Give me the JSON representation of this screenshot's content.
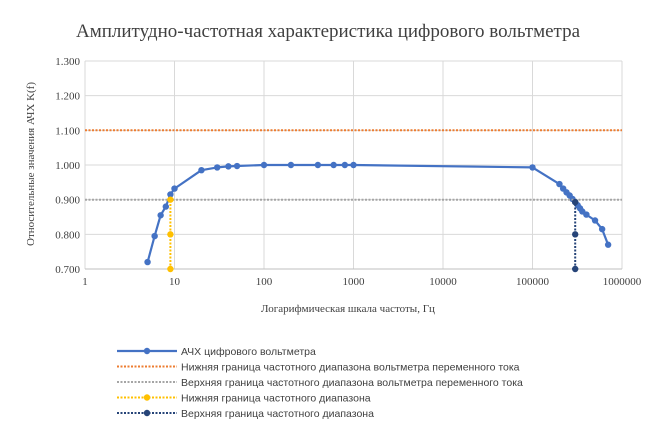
{
  "chart_data": {
    "type": "scatter",
    "title": "Амплитудно-частотная характеристика цифрового вольтметра",
    "xlabel": "Логарифмическая шкала частоты, Гц",
    "ylabel": "Относительные значения АЧХ K(f)",
    "x_scale": "log",
    "xlim": [
      1,
      1000000
    ],
    "ylim": [
      0.7,
      1.3
    ],
    "x_ticks": [
      "1",
      "10",
      "100",
      "1000",
      "10000",
      "100000",
      "1000000"
    ],
    "y_ticks": [
      "0.700",
      "0.800",
      "0.900",
      "1.000",
      "1.100",
      "1.200",
      "1.300"
    ],
    "grid": true,
    "legend_position": "bottom",
    "series": [
      {
        "name": "АЧХ цифрового вольтметра",
        "color": "#4472c4",
        "style": "line-markers",
        "x": [
          5,
          6,
          7,
          8,
          9,
          10,
          20,
          30,
          40,
          50,
          100,
          200,
          400,
          600,
          800,
          1000,
          100000,
          200000,
          220000,
          240000,
          260000,
          280000,
          300000,
          320000,
          340000,
          360000,
          400000,
          500000,
          600000,
          700000
        ],
        "y": [
          0.72,
          0.795,
          0.855,
          0.88,
          0.915,
          0.932,
          0.985,
          0.993,
          0.996,
          0.997,
          1.0,
          1.0,
          1.0,
          1.0,
          1.0,
          1.0,
          0.993,
          0.945,
          0.932,
          0.921,
          0.912,
          0.902,
          0.893,
          0.884,
          0.875,
          0.866,
          0.857,
          0.84,
          0.815,
          0.77
        ]
      },
      {
        "name": "Нижняя граница частотного диапазона вольтметра переменного тока",
        "color": "#ed7d31",
        "style": "hline",
        "x": [
          1,
          1000000
        ],
        "y": [
          1.1,
          1.1
        ]
      },
      {
        "name": "Верхняя граница частотного диапазона вольтметра переменного тока",
        "color": "#a5a5a5",
        "style": "hline",
        "x": [
          1,
          1000000
        ],
        "y": [
          0.9,
          0.9
        ]
      },
      {
        "name": "Нижняя граница частотного диапазона",
        "color": "#ffc000",
        "style": "vline-markers",
        "x": [
          9,
          9,
          9
        ],
        "y": [
          0.7,
          0.8,
          0.9
        ]
      },
      {
        "name": "Верхняя граница частотного диапазона",
        "color": "#264478",
        "style": "vline-markers",
        "x": [
          300000,
          300000,
          300000
        ],
        "y": [
          0.7,
          0.8,
          0.893
        ]
      }
    ]
  }
}
